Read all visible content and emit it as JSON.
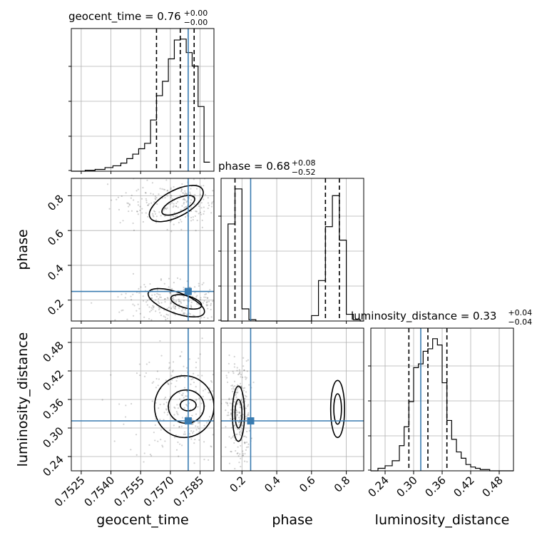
{
  "chart_data": {
    "type": "corner",
    "parameters": [
      {
        "name": "geocent_time",
        "axis_label": "geocent_time",
        "title_main": "geocent_time = 0.76",
        "title_plus": "+0.00",
        "title_minus": "−0.00",
        "range": [
          0.752,
          0.7592
        ],
        "ticks": [
          "0.7525",
          "0.7540",
          "0.7555",
          "0.7570",
          "0.7585"
        ],
        "quantiles": [
          0.7563,
          0.7575,
          0.7582
        ],
        "truth": 0.7579,
        "hist_x": [
          0.752,
          0.7527,
          0.7532,
          0.7537,
          0.7541,
          0.7545,
          0.7548,
          0.7551,
          0.7554,
          0.7557,
          0.756,
          0.7563,
          0.7566,
          0.7569,
          0.7572,
          0.7575,
          0.7578,
          0.7581,
          0.7584,
          0.7587,
          0.759
        ],
        "hist_y": [
          0,
          1,
          2,
          4,
          6,
          9,
          14,
          19,
          25,
          31,
          57,
          84,
          100,
          125,
          146,
          147,
          132,
          117,
          72,
          10
        ]
      },
      {
        "name": "phase",
        "axis_label": "phase",
        "title_main": "phase = 0.68",
        "title_plus": "+0.08",
        "title_minus": "−0.52",
        "range": [
          0.08,
          0.9
        ],
        "ticks": [
          "0.2",
          "0.4",
          "0.6",
          "0.8"
        ],
        "quantiles": [
          0.16,
          0.68,
          0.76
        ],
        "truth": 0.25,
        "hist_x": [
          0.08,
          0.12,
          0.16,
          0.2,
          0.24,
          0.28,
          0.32,
          0.36,
          0.4,
          0.44,
          0.48,
          0.52,
          0.56,
          0.6,
          0.64,
          0.68,
          0.72,
          0.76,
          0.8,
          0.84,
          0.88,
          0.9
        ],
        "hist_y": [
          0,
          72,
          98,
          9,
          1,
          0,
          0,
          0,
          0,
          0,
          0,
          0,
          0,
          4,
          30,
          70,
          93,
          60,
          5,
          1,
          0
        ]
      },
      {
        "name": "luminosity_distance",
        "axis_label": "luminosity_distance",
        "title_main": "luminosity_distance = 0.33",
        "title_plus": "+0.04",
        "title_minus": "−0.04",
        "range": [
          0.21,
          0.51
        ],
        "ticks": [
          "0.24",
          "0.30",
          "0.36",
          "0.42",
          "0.48"
        ],
        "quantiles": [
          0.29,
          0.33,
          0.37
        ],
        "truth": 0.315,
        "hist_x": [
          0.21,
          0.225,
          0.24,
          0.255,
          0.27,
          0.28,
          0.29,
          0.3,
          0.31,
          0.32,
          0.33,
          0.34,
          0.35,
          0.36,
          0.37,
          0.38,
          0.39,
          0.4,
          0.41,
          0.42,
          0.43,
          0.44,
          0.45,
          0.46,
          0.48,
          0.51
        ],
        "hist_y": [
          0,
          2,
          4,
          8,
          20,
          35,
          55,
          82,
          85,
          95,
          97,
          105,
          100,
          70,
          40,
          25,
          15,
          10,
          5,
          3,
          2,
          1,
          1,
          0,
          0
        ]
      }
    ],
    "grid": true,
    "pair_contours": {
      "phase_vs_geocent_time": [
        {
          "cx": 0.7573,
          "cy": 0.755,
          "rx": 0.0015,
          "ry": 0.075,
          "tilt": -28
        },
        {
          "cx": 0.7574,
          "cy": 0.745,
          "rx": 0.0009,
          "ry": 0.04,
          "tilt": -25
        },
        {
          "cx": 0.7573,
          "cy": 0.185,
          "rx": 0.0015,
          "ry": 0.06,
          "tilt": 20
        },
        {
          "cx": 0.7578,
          "cy": 0.19,
          "rx": 0.0008,
          "ry": 0.035,
          "tilt": 15
        }
      ],
      "luminosity_distance_vs_geocent_time": [
        {
          "cx": 0.7577,
          "cy": 0.345,
          "rx": 0.0015,
          "ry": 0.065
        },
        {
          "cx": 0.7578,
          "cy": 0.345,
          "rx": 0.0009,
          "ry": 0.035
        },
        {
          "cx": 0.7579,
          "cy": 0.348,
          "rx": 0.0004,
          "ry": 0.012
        }
      ],
      "luminosity_distance_vs_phase": [
        {
          "cx": 0.18,
          "cy": 0.33,
          "rx": 0.035,
          "ry": 0.058
        },
        {
          "cx": 0.18,
          "cy": 0.33,
          "rx": 0.02,
          "ry": 0.03
        },
        {
          "cx": 0.75,
          "cy": 0.34,
          "rx": 0.04,
          "ry": 0.06
        },
        {
          "cx": 0.75,
          "cy": 0.34,
          "rx": 0.022,
          "ry": 0.032
        }
      ]
    }
  }
}
